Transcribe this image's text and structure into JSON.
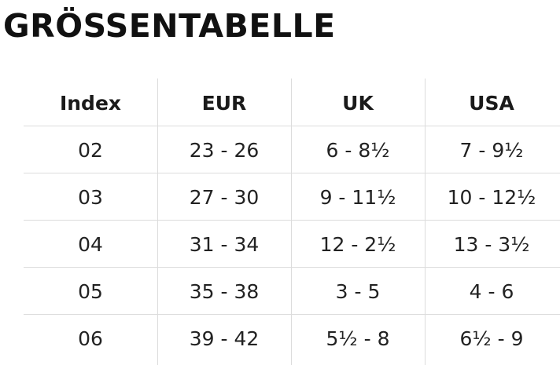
{
  "title": "GRÖSSENTABELLE",
  "table": {
    "header": [
      "Index",
      "EUR",
      "UK",
      "USA"
    ],
    "rows": [
      [
        "02",
        "23 - 26",
        "6 - 8½",
        "7 - 9½"
      ],
      [
        "03",
        "27 - 30",
        "9 - 11½",
        "10 - 12½"
      ],
      [
        "04",
        "31 - 34",
        "12 - 2½",
        "13 - 3½"
      ],
      [
        "05",
        "35 - 38",
        "3 - 5",
        "4 - 6"
      ],
      [
        "06",
        "39 - 42",
        "5½ - 8",
        "6½ - 9"
      ]
    ]
  }
}
